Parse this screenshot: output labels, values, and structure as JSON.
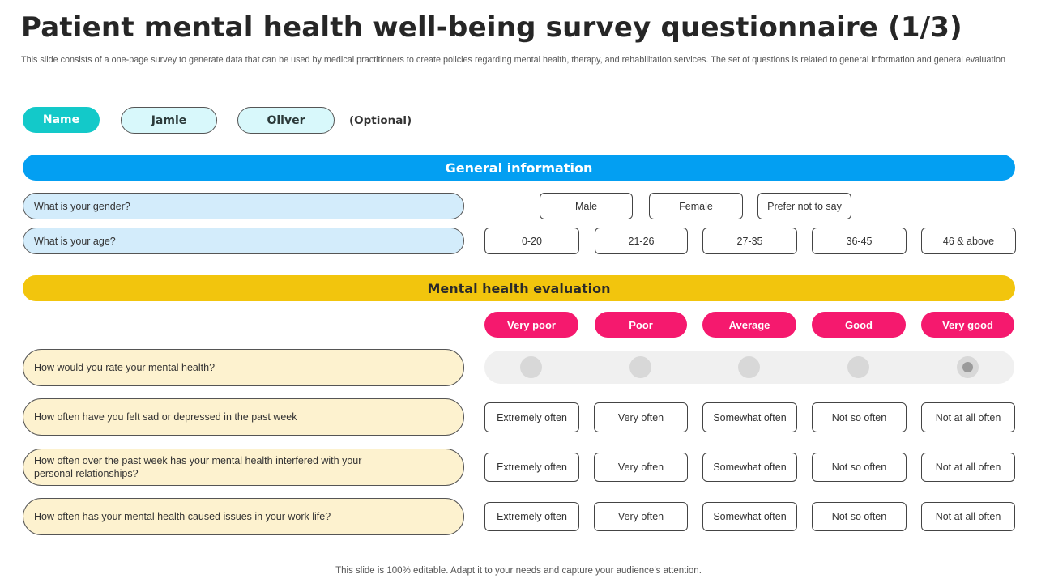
{
  "title": "Patient mental health well-being survey questionnaire (1/3)",
  "subtitle": "This slide consists of a one-page survey to generate data that can be used by medical practitioners to create policies regarding mental health, therapy, and rehabilitation services. The set of questions is related to general information and general evaluation",
  "name_row": {
    "label": "Name",
    "first_name": "Jamie",
    "last_name": "Oliver",
    "optional": "(Optional)"
  },
  "general": {
    "header": "General information",
    "gender_question": "What is your gender?",
    "gender_options": [
      "Male",
      "Female",
      "Prefer not to say"
    ],
    "age_question": "What is your age?",
    "age_options": [
      "0-20",
      "21-26",
      "27-35",
      "36-45",
      "46 & above"
    ]
  },
  "evaluation": {
    "header": "Mental health evaluation",
    "rating_labels": [
      "Very poor",
      "Poor",
      "Average",
      "Good",
      "Very good"
    ],
    "rate_question": "How would you rate your mental health?",
    "rate_selected": "Very good",
    "frequency_questions": [
      "How often have you felt sad or depressed in the past week",
      "How often over the past week has your mental health interfered with your personal relationships?",
      "How often has your mental health caused issues in your work life?"
    ],
    "frequency_options": [
      "Extremely often",
      "Very often",
      "Somewhat often",
      "Not so often",
      "Not at all often"
    ]
  },
  "footer": "This slide is 100% editable. Adapt it to your needs and capture your audience’s attention.",
  "colors": {
    "name_pill": "#13c9c9",
    "general_bar": "#039ff2",
    "evaluation_bar": "#f2c50d",
    "rating_pill": "#f5196e"
  }
}
